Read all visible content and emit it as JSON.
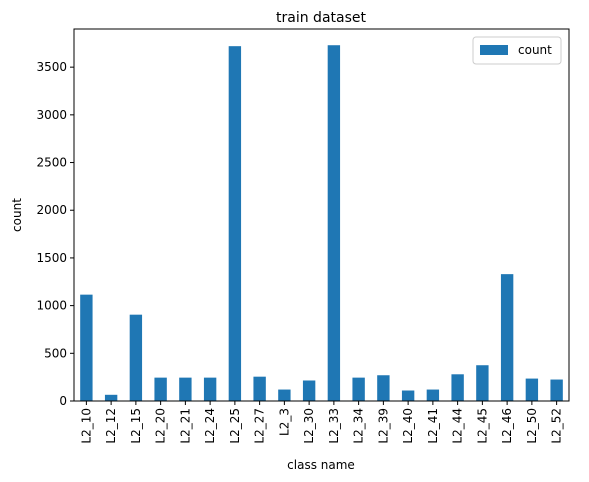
{
  "chart_data": {
    "type": "bar",
    "title": "train dataset",
    "xlabel": "class name",
    "ylabel": "count",
    "categories": [
      "L2_10",
      "L2_12",
      "L2_15",
      "L2_20",
      "L2_21",
      "L2_24",
      "L2_25",
      "L2_27",
      "L2_3",
      "L2_30",
      "L2_33",
      "L2_34",
      "L2_39",
      "L2_40",
      "L2_41",
      "L2_44",
      "L2_45",
      "L2_46",
      "L2_50",
      "L2_52"
    ],
    "series": [
      {
        "name": "count",
        "color": "#1f77b4",
        "values": [
          1115,
          65,
          905,
          245,
          245,
          245,
          3720,
          255,
          120,
          215,
          3730,
          245,
          270,
          110,
          120,
          280,
          375,
          1330,
          235,
          225
        ]
      }
    ],
    "ylim": [
      0,
      3900
    ],
    "yticks": [
      0,
      500,
      1000,
      1500,
      2000,
      2500,
      3000,
      3500
    ],
    "legend_position": "top-right",
    "grid": false
  }
}
